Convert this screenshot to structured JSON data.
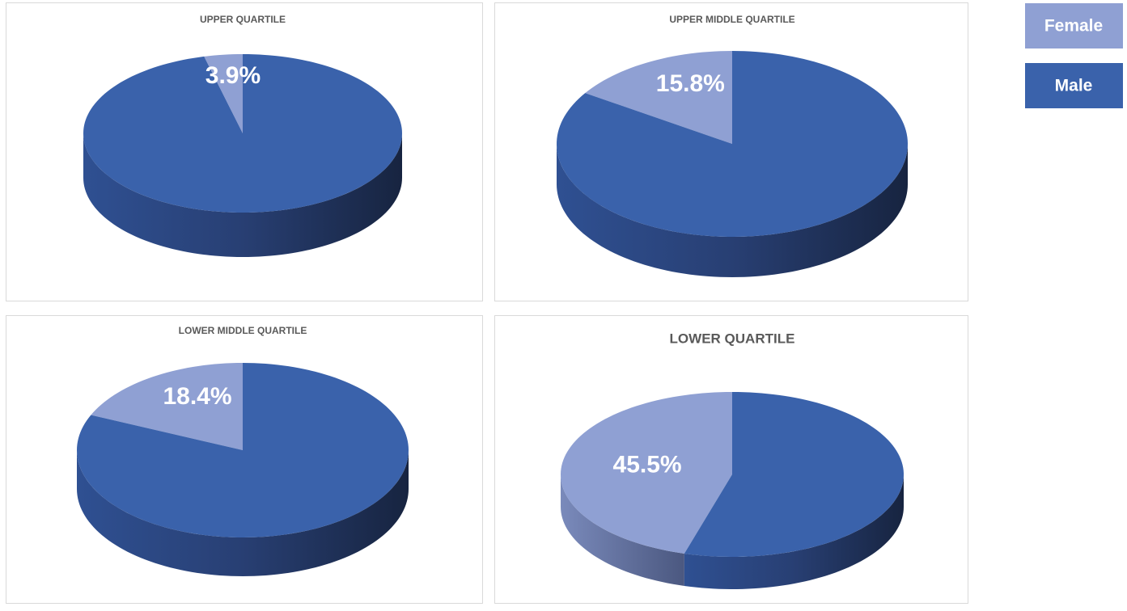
{
  "chart_data": [
    {
      "type": "pie",
      "title": "UPPER QUARTILE",
      "categories": [
        "Female",
        "Male"
      ],
      "values": [
        3.9,
        96.1
      ],
      "value_labels": [
        "3.9%",
        null
      ],
      "colors": [
        "#8fa0d3",
        "#3a62ab"
      ]
    },
    {
      "type": "pie",
      "title": "UPPER MIDDLE QUARTILE",
      "categories": [
        "Female",
        "Male"
      ],
      "values": [
        15.8,
        84.2
      ],
      "value_labels": [
        "15.8%",
        null
      ],
      "colors": [
        "#8fa0d3",
        "#3a62ab"
      ]
    },
    {
      "type": "pie",
      "title": "LOWER MIDDLE QUARTILE",
      "categories": [
        "Female",
        "Male"
      ],
      "values": [
        18.4,
        81.6
      ],
      "value_labels": [
        "18.4%",
        null
      ],
      "colors": [
        "#8fa0d3",
        "#3a62ab"
      ]
    },
    {
      "type": "pie",
      "title": "LOWER QUARTILE",
      "categories": [
        "Female",
        "Male"
      ],
      "values": [
        45.5,
        54.5
      ],
      "value_labels": [
        "45.5%",
        null
      ],
      "colors": [
        "#8fa0d3",
        "#3a62ab"
      ]
    }
  ]
}
